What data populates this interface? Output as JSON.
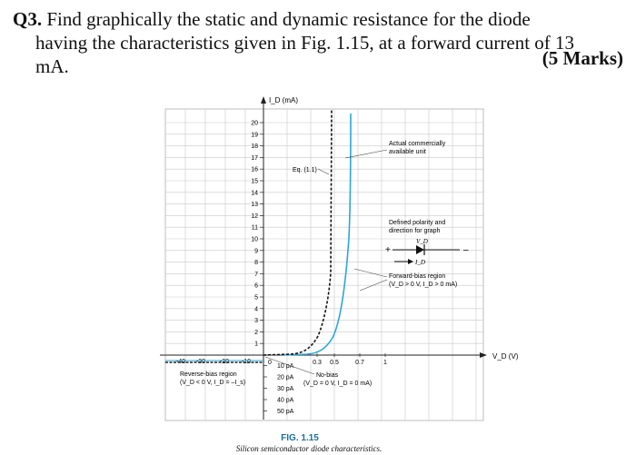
{
  "question": {
    "number": "Q3.",
    "line1": "Find graphically the static and dynamic resistance for the diode",
    "line2": "having the characteristics given in Fig. 1.15, at a forward current of 13",
    "line3": "mA.",
    "marks": "(5 Marks)"
  },
  "figure": {
    "y_axis_label": "I_D (mA)",
    "x_axis_label": "V_D (V)",
    "y_ticks": [
      "1",
      "2",
      "3",
      "4",
      "5",
      "6",
      "7",
      "8",
      "9",
      "10",
      "11",
      "12",
      "13",
      "14",
      "15",
      "16",
      "17",
      "18",
      "19",
      "20"
    ],
    "x_ticks_neg": [
      "-40",
      "-30",
      "-20",
      "-10"
    ],
    "x_ticks_pos": [
      "0.3",
      "0.5",
      "0.7",
      "1"
    ],
    "origin_label": "0",
    "neg_current_ticks": [
      "10 pA",
      "20 pA",
      "30 pA",
      "40 pA",
      "50 pA"
    ],
    "annotations": {
      "eq": "Eq. (1.1)",
      "actual_line1": "Actual commercially",
      "actual_line2": "available unit",
      "defined_line1": "Defined polarity and",
      "defined_line2": "direction for graph",
      "vd_symbol": "V_D",
      "id_symbol": "I_D",
      "plus": "+",
      "minus": "–",
      "forward_line1": "Forward-bias region",
      "forward_line2": "(V_D > 0 V, I_D > 0 mA)",
      "reverse_line1": "Reverse-bias region",
      "reverse_line2": "(V_D < 0 V, I_D = –I_s)",
      "nobias_line1": "No-bias",
      "nobias_line2": "(V_D = 0 V, I_D = 0 mA)"
    },
    "caption_number": "FIG. 1.15",
    "caption_title": "Silicon semiconductor diode characteristics.",
    "colors": {
      "curve": "#2aa7d8",
      "grid": "#c9c9c9",
      "caption": "#1a6fa0"
    }
  }
}
